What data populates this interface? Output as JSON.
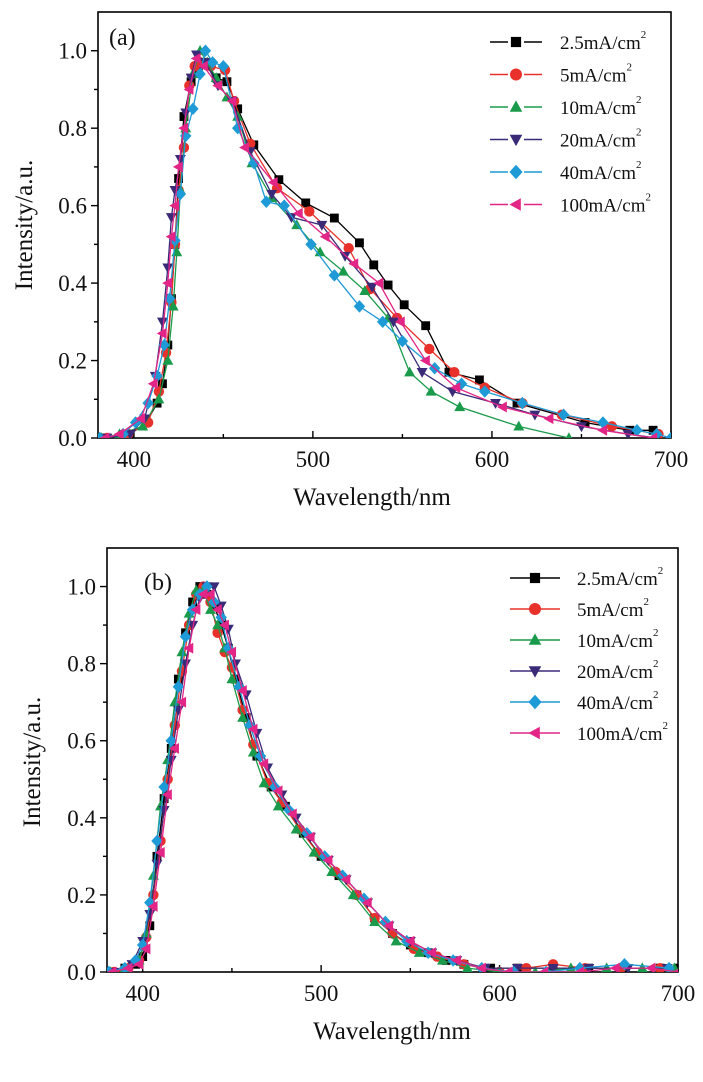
{
  "chart_data": [
    {
      "type": "line",
      "panel_label": "(a)",
      "xlabel": "Wavelength/nm",
      "ylabel": "Intensity/a.u.",
      "xlim": [
        380,
        700
      ],
      "ylim": [
        0,
        1.1
      ],
      "xticks": [
        400,
        500,
        600,
        700
      ],
      "xtick_labels": [
        "400",
        "500",
        "600",
        "700"
      ],
      "yticks": [
        0.0,
        0.2,
        0.4,
        0.6,
        0.8,
        1.0
      ],
      "ytick_labels": [
        "0.0",
        "0.2",
        "0.4",
        "0.6",
        "0.8",
        "1.0"
      ],
      "grid": false,
      "legend_position": "top-right",
      "series": [
        {
          "name": "2.5mA/cm",
          "sup": "2",
          "color": "#000000",
          "marker": "square",
          "x": [
            385,
            398,
            407,
            413,
            416,
            419,
            421,
            423,
            425,
            428,
            432,
            436,
            440,
            446,
            452,
            458,
            467,
            481,
            496,
            512,
            526,
            534,
            542,
            551,
            563,
            576,
            593,
            614,
            652,
            677,
            690
          ],
          "y": [
            0.0,
            0.01,
            0.04,
            0.09,
            0.14,
            0.24,
            0.36,
            0.5,
            0.67,
            0.83,
            0.92,
            0.96,
            0.97,
            0.93,
            0.92,
            0.85,
            0.757,
            0.667,
            0.607,
            0.568,
            0.504,
            0.447,
            0.395,
            0.344,
            0.29,
            0.17,
            0.15,
            0.09,
            0.04,
            0.02,
            0.02
          ]
        },
        {
          "name": "5mA/cm",
          "sup": "2",
          "color": "#e8312a",
          "marker": "circle",
          "x": [
            385,
            397,
            408,
            414,
            418,
            421,
            423,
            425,
            428,
            431,
            434,
            437,
            443,
            451,
            456,
            465,
            480,
            498,
            520,
            532,
            547,
            565,
            579,
            596,
            617,
            639,
            667,
            693
          ],
          "y": [
            0.0,
            0.01,
            0.04,
            0.12,
            0.22,
            0.35,
            0.5,
            0.64,
            0.75,
            0.91,
            0.96,
            0.97,
            0.96,
            0.95,
            0.87,
            0.76,
            0.645,
            0.585,
            0.49,
            0.385,
            0.31,
            0.23,
            0.17,
            0.13,
            0.09,
            0.06,
            0.03,
            0.01
          ]
        },
        {
          "name": "10mA/cm",
          "sup": "2",
          "color": "#1a9b4c",
          "marker": "triangle-up",
          "x": [
            382,
            392,
            405,
            414,
            419,
            422,
            424,
            426,
            429,
            433,
            437,
            441,
            446,
            452,
            458,
            466,
            477,
            491,
            504,
            517,
            529,
            542,
            554,
            566,
            582,
            615,
            643
          ],
          "y": [
            0.0,
            0.01,
            0.03,
            0.1,
            0.2,
            0.34,
            0.48,
            0.64,
            0.8,
            0.94,
            1.0,
            0.97,
            0.93,
            0.88,
            0.83,
            0.71,
            0.62,
            0.55,
            0.48,
            0.43,
            0.38,
            0.31,
            0.17,
            0.12,
            0.08,
            0.03,
            0.0
          ]
        },
        {
          "name": "20mA/cm",
          "sup": "2",
          "color": "#3b2a78",
          "marker": "triangle-down",
          "x": [
            385,
            398,
            406,
            412,
            416,
            419,
            421,
            423,
            426,
            429,
            432,
            435,
            440,
            447,
            455,
            465,
            477,
            488,
            505,
            518,
            533,
            545,
            561,
            578,
            602,
            624,
            650,
            676,
            692
          ],
          "y": [
            0.0,
            0.01,
            0.05,
            0.16,
            0.3,
            0.44,
            0.57,
            0.64,
            0.72,
            0.84,
            0.93,
            0.99,
            0.97,
            0.91,
            0.87,
            0.74,
            0.63,
            0.57,
            0.55,
            0.47,
            0.39,
            0.3,
            0.17,
            0.12,
            0.09,
            0.06,
            0.03,
            0.01,
            0.0
          ]
        },
        {
          "name": "40mA/cm",
          "sup": "2",
          "color": "#1e9ad6",
          "marker": "diamond",
          "x": [
            381,
            394,
            401,
            408,
            413,
            417,
            420,
            423,
            426,
            429,
            433,
            437,
            440,
            444,
            450,
            458,
            467,
            474,
            484,
            499,
            512,
            526,
            539,
            550,
            568,
            583,
            596,
            617,
            640,
            662,
            681,
            692,
            700
          ],
          "y": [
            0.0,
            0.01,
            0.04,
            0.09,
            0.16,
            0.24,
            0.36,
            0.51,
            0.63,
            0.78,
            0.85,
            0.94,
            1.0,
            0.97,
            0.96,
            0.8,
            0.71,
            0.61,
            0.6,
            0.5,
            0.42,
            0.34,
            0.3,
            0.25,
            0.18,
            0.14,
            0.12,
            0.09,
            0.06,
            0.04,
            0.02,
            0.01,
            0.0
          ]
        },
        {
          "name": "100mA/cm",
          "sup": "2",
          "color": "#e22586",
          "marker": "triangle-left",
          "x": [
            384,
            392,
            404,
            411,
            416,
            419,
            421,
            423,
            425,
            428,
            431,
            435,
            439,
            447,
            455,
            462,
            478,
            492,
            507,
            523,
            537,
            549,
            563,
            580,
            606,
            632,
            662,
            690
          ],
          "y": [
            0.0,
            0.01,
            0.05,
            0.14,
            0.27,
            0.4,
            0.52,
            0.6,
            0.7,
            0.8,
            0.9,
            0.98,
            0.96,
            0.91,
            0.87,
            0.75,
            0.66,
            0.58,
            0.52,
            0.45,
            0.4,
            0.3,
            0.2,
            0.13,
            0.08,
            0.05,
            0.02,
            0.0
          ]
        }
      ]
    },
    {
      "type": "line",
      "panel_label": "(b)",
      "xlabel": "Wavelength/nm",
      "ylabel": "Intensity/a.u.",
      "xlim": [
        380,
        700
      ],
      "ylim": [
        0,
        1.1
      ],
      "xticks": [
        400,
        500,
        600,
        700
      ],
      "xtick_labels": [
        "400",
        "500",
        "600",
        "700"
      ],
      "yticks": [
        0.0,
        0.2,
        0.4,
        0.6,
        0.8,
        1.0
      ],
      "ytick_labels": [
        "0.0",
        "0.2",
        "0.4",
        "0.6",
        "0.8",
        "1.0"
      ],
      "grid": false,
      "legend_position": "top-right",
      "series": [
        {
          "name": "2.5mA/cm",
          "sup": "2",
          "color": "#000000",
          "marker": "square",
          "x": [
            383,
            390,
            396,
            400,
            404,
            408,
            412,
            416,
            420,
            424,
            428,
            432,
            436,
            440,
            444,
            448,
            452,
            458,
            464,
            472,
            480,
            490,
            500,
            510,
            520,
            530,
            540,
            550,
            560,
            570,
            580,
            595,
            610,
            630,
            650,
            670,
            690,
            700
          ],
          "y": [
            0.0,
            0.01,
            0.02,
            0.04,
            0.12,
            0.3,
            0.45,
            0.58,
            0.76,
            0.88,
            0.96,
            1.0,
            0.98,
            0.95,
            0.9,
            0.84,
            0.76,
            0.66,
            0.56,
            0.48,
            0.43,
            0.36,
            0.3,
            0.25,
            0.2,
            0.14,
            0.1,
            0.07,
            0.05,
            0.03,
            0.02,
            0.01,
            0.01,
            0.01,
            0.01,
            0.01,
            0.01,
            0.01
          ]
        },
        {
          "name": "5mA/cm",
          "sup": "2",
          "color": "#e8312a",
          "marker": "circle",
          "x": [
            384,
            392,
            398,
            402,
            406,
            410,
            414,
            418,
            422,
            426,
            430,
            434,
            438,
            442,
            446,
            450,
            456,
            462,
            470,
            478,
            488,
            498,
            508,
            520,
            530,
            540,
            552,
            565,
            580,
            600,
            615,
            630,
            648,
            668,
            690
          ],
          "y": [
            0.0,
            0.01,
            0.03,
            0.09,
            0.2,
            0.34,
            0.5,
            0.64,
            0.78,
            0.9,
            0.98,
            1.0,
            0.96,
            0.88,
            0.83,
            0.79,
            0.68,
            0.59,
            0.49,
            0.44,
            0.37,
            0.31,
            0.26,
            0.2,
            0.14,
            0.1,
            0.06,
            0.04,
            0.02,
            0.0,
            0.01,
            0.02,
            0.01,
            0.01,
            0.01
          ]
        },
        {
          "name": "10mA/cm",
          "sup": "2",
          "color": "#1a9b4c",
          "marker": "triangle-up",
          "x": [
            382,
            390,
            398,
            402,
            406,
            410,
            414,
            418,
            422,
            426,
            430,
            434,
            438,
            442,
            446,
            450,
            456,
            462,
            468,
            476,
            486,
            496,
            506,
            518,
            530,
            542,
            555,
            568,
            582,
            600,
            620,
            640,
            660,
            680,
            698
          ],
          "y": [
            0.0,
            0.01,
            0.03,
            0.1,
            0.25,
            0.43,
            0.55,
            0.7,
            0.83,
            0.93,
            0.99,
            0.99,
            0.94,
            0.9,
            0.84,
            0.76,
            0.66,
            0.57,
            0.49,
            0.43,
            0.37,
            0.31,
            0.26,
            0.2,
            0.13,
            0.08,
            0.05,
            0.03,
            0.01,
            0.0,
            0.0,
            0.01,
            0.01,
            0.01,
            0.01
          ]
        },
        {
          "name": "20mA/cm",
          "sup": "2",
          "color": "#3b2a78",
          "marker": "triangle-down",
          "x": [
            384,
            394,
            400,
            404,
            408,
            412,
            416,
            420,
            424,
            428,
            432,
            436,
            440,
            444,
            448,
            452,
            458,
            464,
            470,
            478,
            486,
            494,
            504,
            514,
            526,
            538,
            550,
            562,
            576,
            592,
            610,
            630,
            650,
            672,
            694
          ],
          "y": [
            0.0,
            0.02,
            0.08,
            0.15,
            0.28,
            0.42,
            0.55,
            0.68,
            0.8,
            0.9,
            0.97,
            1.0,
            1.0,
            0.95,
            0.89,
            0.8,
            0.72,
            0.62,
            0.53,
            0.46,
            0.4,
            0.35,
            0.29,
            0.24,
            0.18,
            0.12,
            0.08,
            0.05,
            0.03,
            0.01,
            0.01,
            0.01,
            0.01,
            0.01,
            0.01
          ]
        },
        {
          "name": "40mA/cm",
          "sup": "2",
          "color": "#1e9ad6",
          "marker": "diamond",
          "x": [
            381,
            390,
            396,
            400,
            404,
            408,
            412,
            416,
            420,
            424,
            428,
            432,
            436,
            440,
            444,
            448,
            454,
            460,
            466,
            474,
            482,
            492,
            502,
            512,
            524,
            536,
            548,
            560,
            574,
            590,
            608,
            626,
            645,
            670,
            695
          ],
          "y": [
            0.0,
            0.01,
            0.03,
            0.07,
            0.18,
            0.34,
            0.48,
            0.6,
            0.74,
            0.87,
            0.94,
            0.98,
            1.0,
            0.96,
            0.92,
            0.84,
            0.74,
            0.64,
            0.56,
            0.48,
            0.42,
            0.36,
            0.3,
            0.25,
            0.19,
            0.13,
            0.08,
            0.05,
            0.03,
            0.01,
            0.0,
            0.0,
            0.01,
            0.02,
            0.01
          ]
        },
        {
          "name": "100mA/cm",
          "sup": "2",
          "color": "#e22586",
          "marker": "triangle-left",
          "x": [
            383,
            392,
            398,
            402,
            406,
            410,
            414,
            418,
            422,
            426,
            430,
            434,
            438,
            442,
            446,
            450,
            456,
            462,
            468,
            476,
            484,
            494,
            504,
            514,
            526,
            538,
            550,
            562,
            576,
            590,
            605,
            625,
            645,
            665,
            685,
            700
          ],
          "y": [
            0.0,
            0.01,
            0.02,
            0.06,
            0.17,
            0.31,
            0.46,
            0.58,
            0.7,
            0.84,
            0.94,
            0.98,
            0.98,
            0.94,
            0.9,
            0.83,
            0.73,
            0.63,
            0.54,
            0.47,
            0.41,
            0.35,
            0.29,
            0.24,
            0.18,
            0.12,
            0.08,
            0.05,
            0.03,
            0.01,
            0.0,
            0.0,
            0.0,
            0.01,
            0.01,
            0.0
          ]
        }
      ]
    }
  ]
}
